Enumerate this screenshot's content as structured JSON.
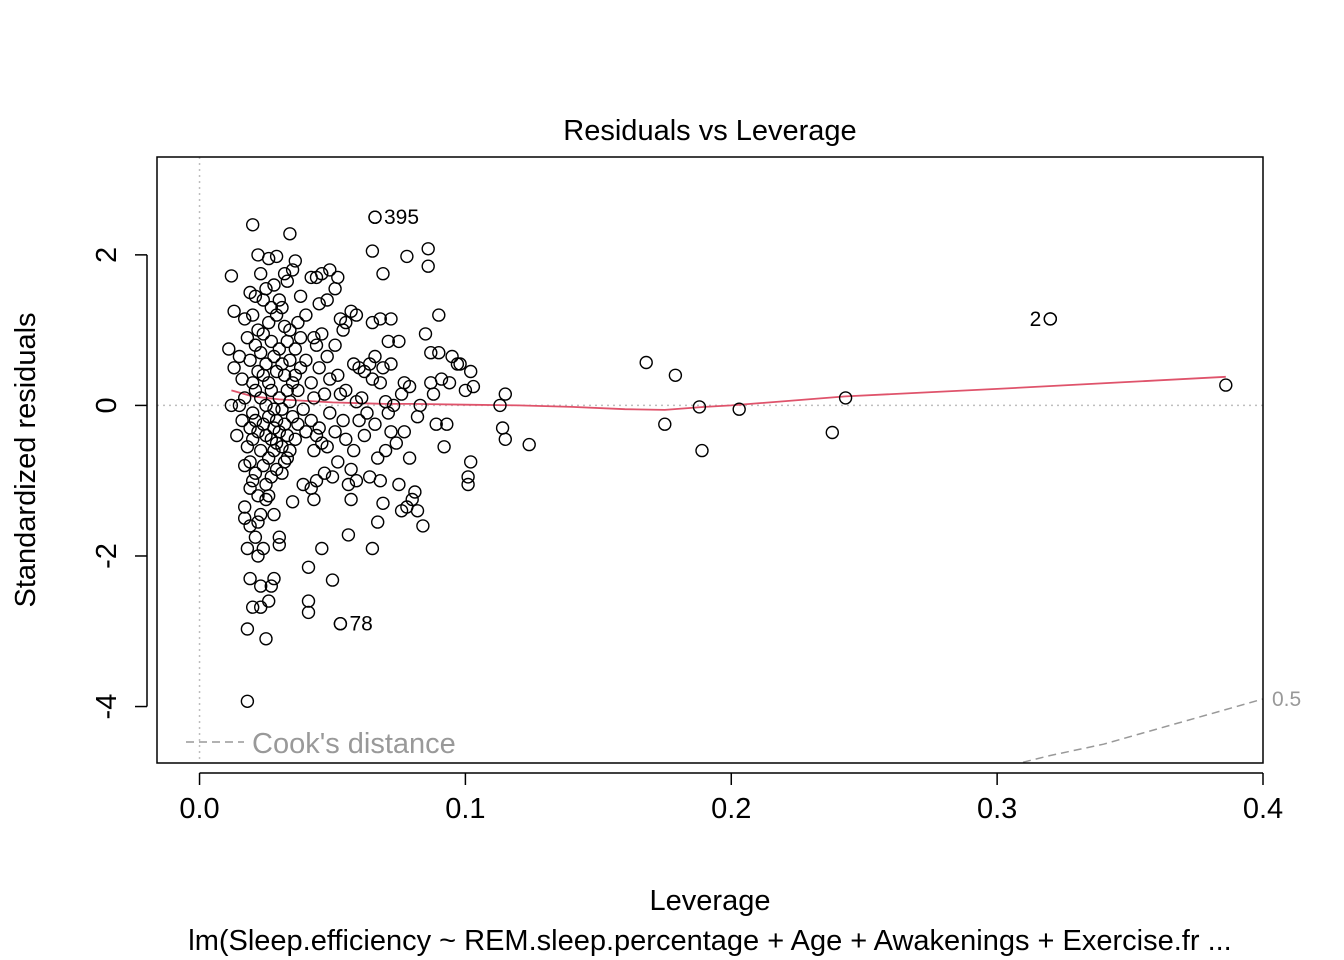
{
  "chart_data": {
    "type": "scatter",
    "title": "Residuals vs Leverage",
    "xlabel": "Leverage",
    "ylabel": "Standardized residuals",
    "subtitle": "lm(Sleep.efficiency ~ REM.sleep.percentage + Age + Awakenings + Exercise.fr ...",
    "xlim": [
      -0.016,
      0.4
    ],
    "ylim": [
      -4.75,
      3.3
    ],
    "x_ticks": [
      0.0,
      0.1,
      0.2,
      0.3,
      0.4
    ],
    "x_tick_labels": [
      "0.0",
      "0.1",
      "0.2",
      "0.3",
      "0.4"
    ],
    "y_ticks": [
      -4,
      -2,
      0,
      2
    ],
    "y_tick_labels": [
      "-4",
      "-2",
      "0",
      "2"
    ],
    "colors": {
      "smooth": "#DF536B",
      "points": "#000000",
      "reference": "#BEBEBE",
      "contour": "#999999"
    },
    "labeled_points": [
      {
        "label": "395",
        "x": 0.066,
        "y": 2.5
      },
      {
        "label": "2",
        "x": 0.32,
        "y": 1.15
      },
      {
        "label": "78",
        "x": 0.053,
        "y": -2.9
      }
    ],
    "points": [
      [
        0.011,
        0.75
      ],
      [
        0.012,
        1.72
      ],
      [
        0.012,
        0.0
      ],
      [
        0.013,
        1.25
      ],
      [
        0.013,
        0.5
      ],
      [
        0.014,
        -0.4
      ],
      [
        0.015,
        0.0
      ],
      [
        0.015,
        0.65
      ],
      [
        0.016,
        0.35
      ],
      [
        0.016,
        -0.2
      ],
      [
        0.017,
        -0.8
      ],
      [
        0.017,
        1.15
      ],
      [
        0.017,
        0.1
      ],
      [
        0.017,
        -1.35
      ],
      [
        0.017,
        -1.5
      ],
      [
        0.018,
        0.9
      ],
      [
        0.018,
        -0.55
      ],
      [
        0.018,
        -1.9
      ],
      [
        0.018,
        -2.97
      ],
      [
        0.018,
        -3.93
      ],
      [
        0.019,
        1.5
      ],
      [
        0.019,
        0.6
      ],
      [
        0.019,
        -0.3
      ],
      [
        0.019,
        -0.75
      ],
      [
        0.019,
        -1.1
      ],
      [
        0.019,
        -2.3
      ],
      [
        0.019,
        -1.6
      ],
      [
        0.02,
        2.4
      ],
      [
        0.02,
        1.2
      ],
      [
        0.02,
        0.3
      ],
      [
        0.02,
        -0.1
      ],
      [
        0.02,
        -0.45
      ],
      [
        0.02,
        -1.0
      ],
      [
        0.02,
        -2.68
      ],
      [
        0.021,
        1.45
      ],
      [
        0.021,
        0.8
      ],
      [
        0.021,
        0.2
      ],
      [
        0.021,
        -0.2
      ],
      [
        0.021,
        -0.9
      ],
      [
        0.021,
        -1.75
      ],
      [
        0.022,
        2.0
      ],
      [
        0.022,
        1.0
      ],
      [
        0.022,
        0.45
      ],
      [
        0.022,
        -0.35
      ],
      [
        0.022,
        -1.2
      ],
      [
        0.022,
        -1.55
      ],
      [
        0.022,
        -2.0
      ],
      [
        0.023,
        1.75
      ],
      [
        0.023,
        0.7
      ],
      [
        0.023,
        0.1
      ],
      [
        0.023,
        -0.6
      ],
      [
        0.023,
        -1.45
      ],
      [
        0.023,
        -2.4
      ],
      [
        0.023,
        -2.68
      ],
      [
        0.024,
        1.4
      ],
      [
        0.024,
        0.95
      ],
      [
        0.024,
        0.4
      ],
      [
        0.024,
        -0.25
      ],
      [
        0.024,
        -0.8
      ],
      [
        0.024,
        -1.9
      ],
      [
        0.025,
        1.55
      ],
      [
        0.025,
        0.55
      ],
      [
        0.025,
        0.0
      ],
      [
        0.025,
        -0.4
      ],
      [
        0.025,
        -1.05
      ],
      [
        0.025,
        -1.25
      ],
      [
        0.025,
        -3.1
      ],
      [
        0.026,
        1.95
      ],
      [
        0.026,
        1.1
      ],
      [
        0.026,
        0.3
      ],
      [
        0.026,
        -0.15
      ],
      [
        0.026,
        -0.7
      ],
      [
        0.026,
        -1.2
      ],
      [
        0.026,
        -2.6
      ],
      [
        0.027,
        1.3
      ],
      [
        0.027,
        0.85
      ],
      [
        0.027,
        0.2
      ],
      [
        0.027,
        -0.45
      ],
      [
        0.027,
        -0.95
      ],
      [
        0.027,
        -2.4
      ],
      [
        0.028,
        1.6
      ],
      [
        0.028,
        0.65
      ],
      [
        0.028,
        -0.05
      ],
      [
        0.028,
        -0.3
      ],
      [
        0.028,
        -0.6
      ],
      [
        0.028,
        -1.45
      ],
      [
        0.028,
        -2.3
      ],
      [
        0.029,
        1.98
      ],
      [
        0.029,
        1.2
      ],
      [
        0.029,
        0.45
      ],
      [
        0.029,
        -0.2
      ],
      [
        0.029,
        -0.5
      ],
      [
        0.029,
        -0.85
      ],
      [
        0.03,
        1.4
      ],
      [
        0.03,
        0.75
      ],
      [
        0.03,
        0.1
      ],
      [
        0.03,
        -0.35
      ],
      [
        0.03,
        -1.75
      ],
      [
        0.03,
        -1.85
      ],
      [
        0.031,
        1.3
      ],
      [
        0.031,
        0.55
      ],
      [
        0.031,
        -0.05
      ],
      [
        0.031,
        -0.55
      ],
      [
        0.031,
        -0.9
      ],
      [
        0.032,
        1.75
      ],
      [
        0.032,
        1.05
      ],
      [
        0.032,
        0.4
      ],
      [
        0.032,
        -0.25
      ],
      [
        0.032,
        -0.75
      ],
      [
        0.033,
        1.65
      ],
      [
        0.033,
        0.85
      ],
      [
        0.033,
        0.2
      ],
      [
        0.033,
        -0.4
      ],
      [
        0.033,
        -0.7
      ],
      [
        0.034,
        2.28
      ],
      [
        0.034,
        1.0
      ],
      [
        0.034,
        0.6
      ],
      [
        0.034,
        0.05
      ],
      [
        0.034,
        -0.6
      ],
      [
        0.035,
        1.8
      ],
      [
        0.035,
        0.3
      ],
      [
        0.035,
        -0.15
      ],
      [
        0.035,
        -1.28
      ],
      [
        0.036,
        1.92
      ],
      [
        0.036,
        0.75
      ],
      [
        0.036,
        0.4
      ],
      [
        0.036,
        -0.45
      ],
      [
        0.037,
        1.1
      ],
      [
        0.037,
        0.2
      ],
      [
        0.037,
        -0.25
      ],
      [
        0.038,
        1.45
      ],
      [
        0.038,
        0.9
      ],
      [
        0.038,
        0.5
      ],
      [
        0.039,
        -0.05
      ],
      [
        0.039,
        -1.05
      ],
      [
        0.04,
        1.2
      ],
      [
        0.04,
        0.6
      ],
      [
        0.04,
        -0.35
      ],
      [
        0.041,
        -2.15
      ],
      [
        0.041,
        -2.6
      ],
      [
        0.041,
        -2.75
      ],
      [
        0.042,
        1.7
      ],
      [
        0.042,
        0.3
      ],
      [
        0.042,
        -0.2
      ],
      [
        0.042,
        -1.1
      ],
      [
        0.043,
        0.9
      ],
      [
        0.043,
        0.1
      ],
      [
        0.043,
        -0.6
      ],
      [
        0.043,
        -1.25
      ],
      [
        0.044,
        1.7
      ],
      [
        0.044,
        0.8
      ],
      [
        0.044,
        -0.4
      ],
      [
        0.044,
        -1.0
      ],
      [
        0.045,
        1.35
      ],
      [
        0.045,
        0.5
      ],
      [
        0.045,
        -0.3
      ],
      [
        0.046,
        1.75
      ],
      [
        0.046,
        0.95
      ],
      [
        0.046,
        -0.5
      ],
      [
        0.046,
        -1.9
      ],
      [
        0.047,
        0.15
      ],
      [
        0.047,
        -0.9
      ],
      [
        0.048,
        1.4
      ],
      [
        0.048,
        0.65
      ],
      [
        0.048,
        -0.55
      ],
      [
        0.049,
        1.8
      ],
      [
        0.049,
        0.35
      ],
      [
        0.049,
        -0.1
      ],
      [
        0.05,
        -0.95
      ],
      [
        0.05,
        -2.32
      ],
      [
        0.051,
        1.55
      ],
      [
        0.051,
        0.8
      ],
      [
        0.051,
        -0.35
      ],
      [
        0.052,
        1.7
      ],
      [
        0.052,
        0.4
      ],
      [
        0.052,
        -0.75
      ],
      [
        0.053,
        1.15
      ],
      [
        0.053,
        0.15
      ],
      [
        0.053,
        -2.9
      ],
      [
        0.054,
        1.0
      ],
      [
        0.054,
        -0.2
      ],
      [
        0.055,
        1.1
      ],
      [
        0.055,
        0.2
      ],
      [
        0.055,
        -0.45
      ],
      [
        0.056,
        -1.05
      ],
      [
        0.056,
        -1.72
      ],
      [
        0.057,
        1.25
      ],
      [
        0.057,
        -0.85
      ],
      [
        0.057,
        -1.25
      ],
      [
        0.058,
        0.55
      ],
      [
        0.058,
        -0.6
      ],
      [
        0.059,
        1.2
      ],
      [
        0.059,
        0.05
      ],
      [
        0.059,
        -1.0
      ],
      [
        0.06,
        0.5
      ],
      [
        0.06,
        -0.2
      ],
      [
        0.061,
        0.1
      ],
      [
        0.062,
        0.45
      ],
      [
        0.062,
        -0.4
      ],
      [
        0.063,
        -0.1
      ],
      [
        0.064,
        0.55
      ],
      [
        0.064,
        -0.95
      ],
      [
        0.065,
        2.05
      ],
      [
        0.065,
        1.1
      ],
      [
        0.065,
        0.35
      ],
      [
        0.065,
        -1.9
      ],
      [
        0.066,
        2.5
      ],
      [
        0.066,
        0.65
      ],
      [
        0.066,
        -0.25
      ],
      [
        0.067,
        -0.7
      ],
      [
        0.067,
        -1.55
      ],
      [
        0.068,
        1.15
      ],
      [
        0.068,
        0.3
      ],
      [
        0.068,
        -1.0
      ],
      [
        0.069,
        1.75
      ],
      [
        0.069,
        0.5
      ],
      [
        0.069,
        -1.3
      ],
      [
        0.07,
        0.05
      ],
      [
        0.07,
        -0.6
      ],
      [
        0.071,
        0.85
      ],
      [
        0.071,
        -0.1
      ],
      [
        0.072,
        1.15
      ],
      [
        0.072,
        0.55
      ],
      [
        0.072,
        -0.35
      ],
      [
        0.073,
        0.0
      ],
      [
        0.074,
        -0.5
      ],
      [
        0.075,
        0.85
      ],
      [
        0.075,
        -1.05
      ],
      [
        0.076,
        0.15
      ],
      [
        0.076,
        -1.4
      ],
      [
        0.077,
        0.3
      ],
      [
        0.077,
        -0.35
      ],
      [
        0.078,
        1.98
      ],
      [
        0.078,
        -1.35
      ],
      [
        0.079,
        0.25
      ],
      [
        0.079,
        -0.7
      ],
      [
        0.08,
        -1.25
      ],
      [
        0.081,
        -1.15
      ],
      [
        0.082,
        -0.15
      ],
      [
        0.082,
        -1.4
      ],
      [
        0.083,
        0.0
      ],
      [
        0.084,
        -1.6
      ],
      [
        0.085,
        0.95
      ],
      [
        0.086,
        2.08
      ],
      [
        0.086,
        1.85
      ],
      [
        0.087,
        0.7
      ],
      [
        0.087,
        0.3
      ],
      [
        0.088,
        0.15
      ],
      [
        0.089,
        -0.25
      ],
      [
        0.09,
        1.2
      ],
      [
        0.09,
        0.7
      ],
      [
        0.091,
        0.35
      ],
      [
        0.092,
        -0.55
      ],
      [
        0.093,
        -0.25
      ],
      [
        0.094,
        0.3
      ],
      [
        0.095,
        0.65
      ],
      [
        0.097,
        0.55
      ],
      [
        0.098,
        0.55
      ],
      [
        0.1,
        0.2
      ],
      [
        0.101,
        -0.95
      ],
      [
        0.101,
        -1.05
      ],
      [
        0.102,
        0.45
      ],
      [
        0.102,
        -0.75
      ],
      [
        0.103,
        0.25
      ],
      [
        0.113,
        0.0
      ],
      [
        0.114,
        -0.3
      ],
      [
        0.115,
        0.15
      ],
      [
        0.115,
        -0.45
      ],
      [
        0.124,
        -0.52
      ],
      [
        0.168,
        0.57
      ],
      [
        0.175,
        -0.25
      ],
      [
        0.179,
        0.4
      ],
      [
        0.188,
        -0.02
      ],
      [
        0.189,
        -0.6
      ],
      [
        0.203,
        -0.05
      ],
      [
        0.238,
        -0.36
      ],
      [
        0.243,
        0.1
      ],
      [
        0.32,
        1.15
      ],
      [
        0.386,
        0.27
      ]
    ],
    "smooth_line": [
      [
        0.012,
        0.2
      ],
      [
        0.02,
        0.12
      ],
      [
        0.03,
        0.08
      ],
      [
        0.04,
        0.06
      ],
      [
        0.05,
        0.04
      ],
      [
        0.06,
        0.03
      ],
      [
        0.07,
        0.02
      ],
      [
        0.08,
        0.02
      ],
      [
        0.1,
        0.01
      ],
      [
        0.12,
        0.0
      ],
      [
        0.14,
        -0.02
      ],
      [
        0.16,
        -0.05
      ],
      [
        0.175,
        -0.06
      ],
      [
        0.19,
        -0.02
      ],
      [
        0.2,
        0.0
      ],
      [
        0.243,
        0.12
      ],
      [
        0.3,
        0.22
      ],
      [
        0.386,
        0.38
      ]
    ],
    "cooks_contour": {
      "label": "0.5",
      "points": [
        [
          0.305,
          -4.78
        ],
        [
          0.32,
          -4.65
        ],
        [
          0.34,
          -4.5
        ],
        [
          0.36,
          -4.3
        ],
        [
          0.38,
          -4.1
        ],
        [
          0.4,
          -3.9
        ]
      ]
    },
    "legend": {
      "label": "Cook's distance",
      "position": "bottom-left"
    }
  }
}
